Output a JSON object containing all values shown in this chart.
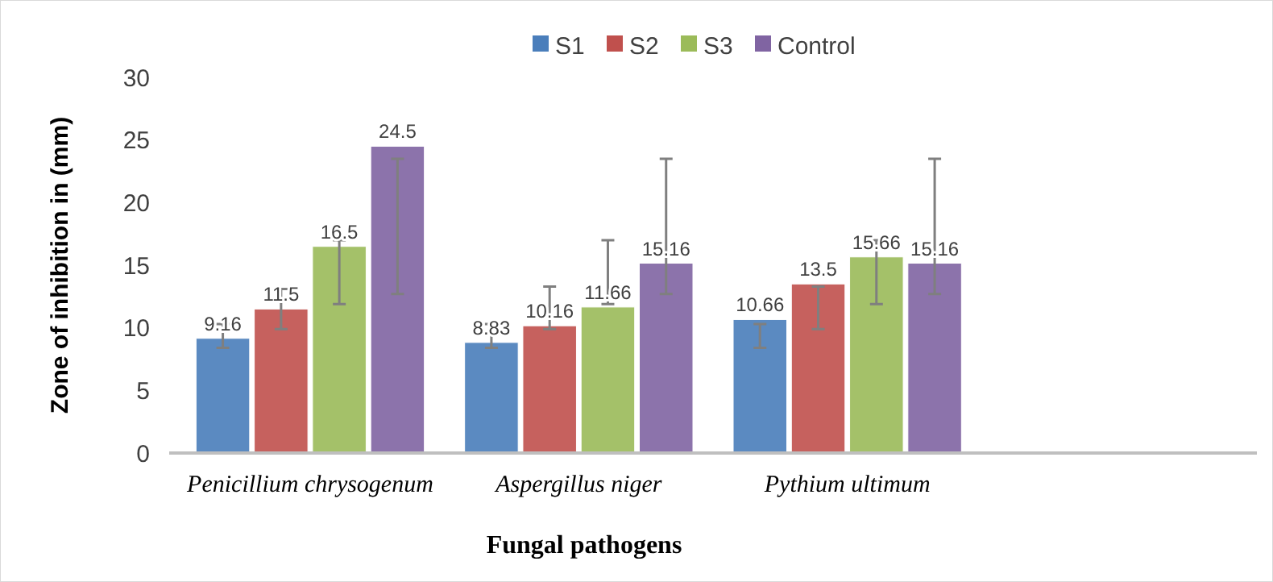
{
  "chart_data": {
    "type": "bar",
    "xlabel": "Fungal pathogens",
    "ylabel": "Zone of inhibition in (mm)",
    "categories": [
      "Penicillium chrysogenum",
      "Aspergillus niger",
      "Pythium ultimum",
      null
    ],
    "series": [
      {
        "name": "S1",
        "color": "#4a7ebb",
        "values": [
          9.16,
          8.83,
          10.66,
          null
        ],
        "errors": [
          [
            8.4,
            10.3
          ],
          [
            8.4,
            10.3
          ],
          [
            8.4,
            10.3
          ],
          null
        ]
      },
      {
        "name": "S2",
        "color": "#c0504d",
        "values": [
          11.5,
          10.16,
          13.5,
          null
        ],
        "errors": [
          [
            9.9,
            13.1
          ],
          [
            9.9,
            13.3
          ],
          [
            9.9,
            13.3
          ],
          null
        ]
      },
      {
        "name": "S3",
        "color": "#9bbb59",
        "values": [
          16.5,
          11.66,
          15.66,
          null
        ],
        "errors": [
          [
            11.9,
            17.0
          ],
          [
            11.9,
            17.0
          ],
          [
            11.9,
            17.0
          ],
          null
        ]
      },
      {
        "name": "Control",
        "color": "#8064a2",
        "values": [
          24.5,
          15.16,
          15.16,
          null
        ],
        "errors": [
          [
            12.7,
            23.5
          ],
          [
            12.7,
            23.5
          ],
          [
            12.7,
            23.5
          ],
          null
        ]
      }
    ],
    "ylim": [
      0,
      30
    ],
    "yticks": [
      0,
      5,
      10,
      15,
      20,
      25,
      30
    ],
    "data_labels": true,
    "legend": "top",
    "grid": false
  }
}
